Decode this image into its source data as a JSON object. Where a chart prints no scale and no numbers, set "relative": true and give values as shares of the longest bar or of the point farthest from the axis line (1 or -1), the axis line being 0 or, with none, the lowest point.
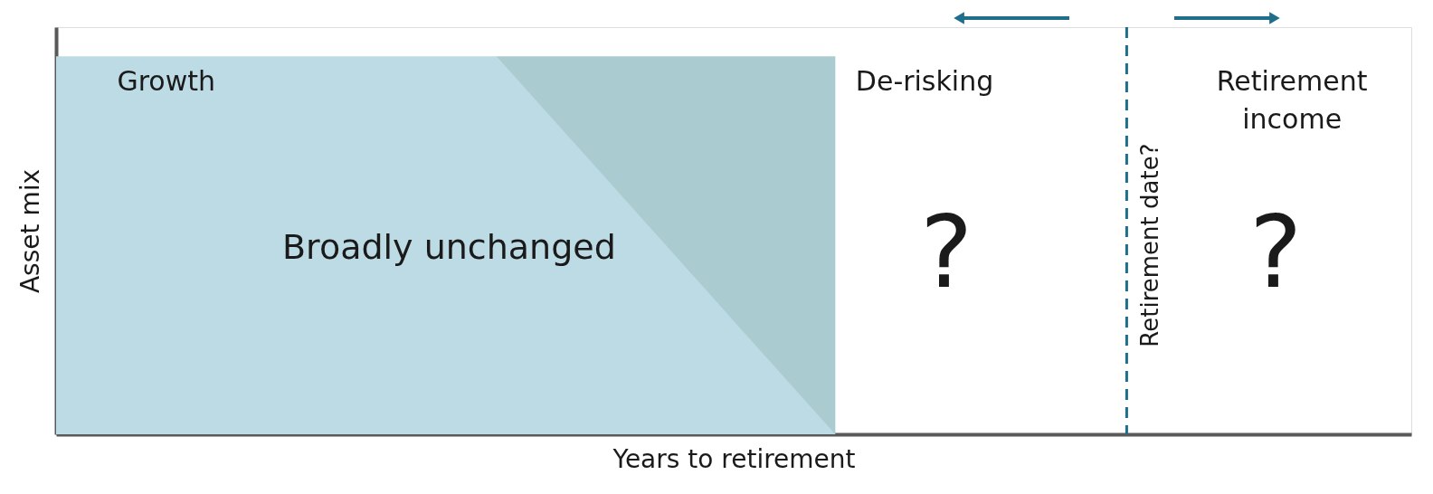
{
  "chart_data": {
    "type": "area",
    "relative": true,
    "xlabel": "Years to retirement",
    "ylabel": "Asset mix",
    "categories": [
      null,
      null,
      null,
      null,
      null,
      null,
      null,
      null,
      null,
      null,
      null,
      null,
      null,
      null,
      null,
      null,
      null,
      null,
      null,
      null,
      null,
      null,
      null,
      null,
      null,
      null,
      null,
      null,
      null,
      null,
      null,
      null,
      null,
      null,
      null,
      null,
      null,
      null,
      null,
      null,
      null
    ],
    "tick_labels": false,
    "grid": false,
    "legend": false,
    "series": [
      {
        "color": "#aacbd0",
        "values": [
          null,
          null,
          null,
          null,
          null,
          null,
          null,
          null,
          null,
          null,
          null,
          null,
          null,
          1,
          1,
          1,
          1,
          1,
          1,
          1,
          1,
          1,
          1,
          1,
          null,
          null,
          null,
          null,
          null,
          null,
          null,
          null,
          null,
          null,
          null,
          null,
          null,
          null,
          null,
          null,
          null
        ]
      },
      {
        "color": "#bddbe4",
        "values": [
          1,
          1,
          1,
          1,
          1,
          1,
          1,
          1,
          1,
          1,
          1,
          1,
          1,
          1,
          0.9,
          0.8,
          0.7,
          0.6,
          0.5,
          0.4,
          0.3,
          0.2,
          0.1,
          0,
          null,
          null,
          null,
          null,
          null,
          null,
          null,
          null,
          null,
          null,
          null,
          null,
          null,
          null,
          null,
          null,
          null
        ]
      }
    ],
    "annotations": [
      "Growth",
      "Broadly unchanged",
      "De-risking",
      "Retirement income",
      "?",
      "?",
      "Retirement date?"
    ]
  }
}
